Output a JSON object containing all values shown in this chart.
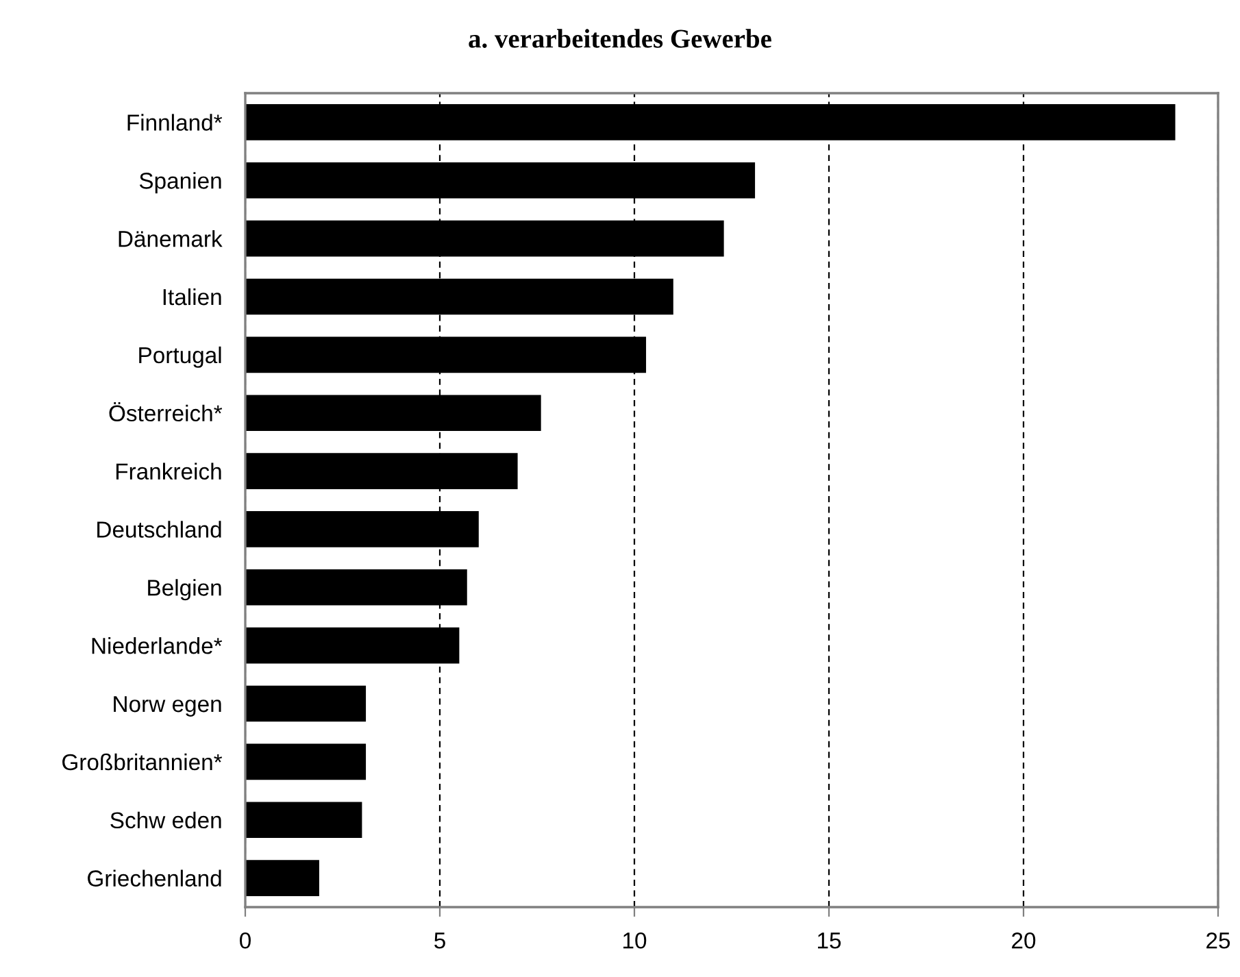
{
  "chart_data": {
    "type": "bar",
    "orientation": "horizontal",
    "title": "a. verarbeitendes Gewerbe",
    "categories": [
      "Finnland*",
      "Spanien",
      "Dänemark",
      "Italien",
      "Portugal",
      "Österreich*",
      "Frankreich",
      "Deutschland",
      "Belgien",
      "Niederlande*",
      "Norw egen",
      "Großbritannien*",
      "Schw eden",
      "Griechenland"
    ],
    "values": [
      23.9,
      13.1,
      12.3,
      11.0,
      10.3,
      7.6,
      7.0,
      6.0,
      5.7,
      5.5,
      3.1,
      3.1,
      3.0,
      1.9
    ],
    "color": "#000000",
    "xlim": [
      0,
      25
    ],
    "xticks": [
      0,
      5,
      10,
      15,
      20,
      25
    ],
    "grid": "x",
    "line_style": "dashed"
  }
}
